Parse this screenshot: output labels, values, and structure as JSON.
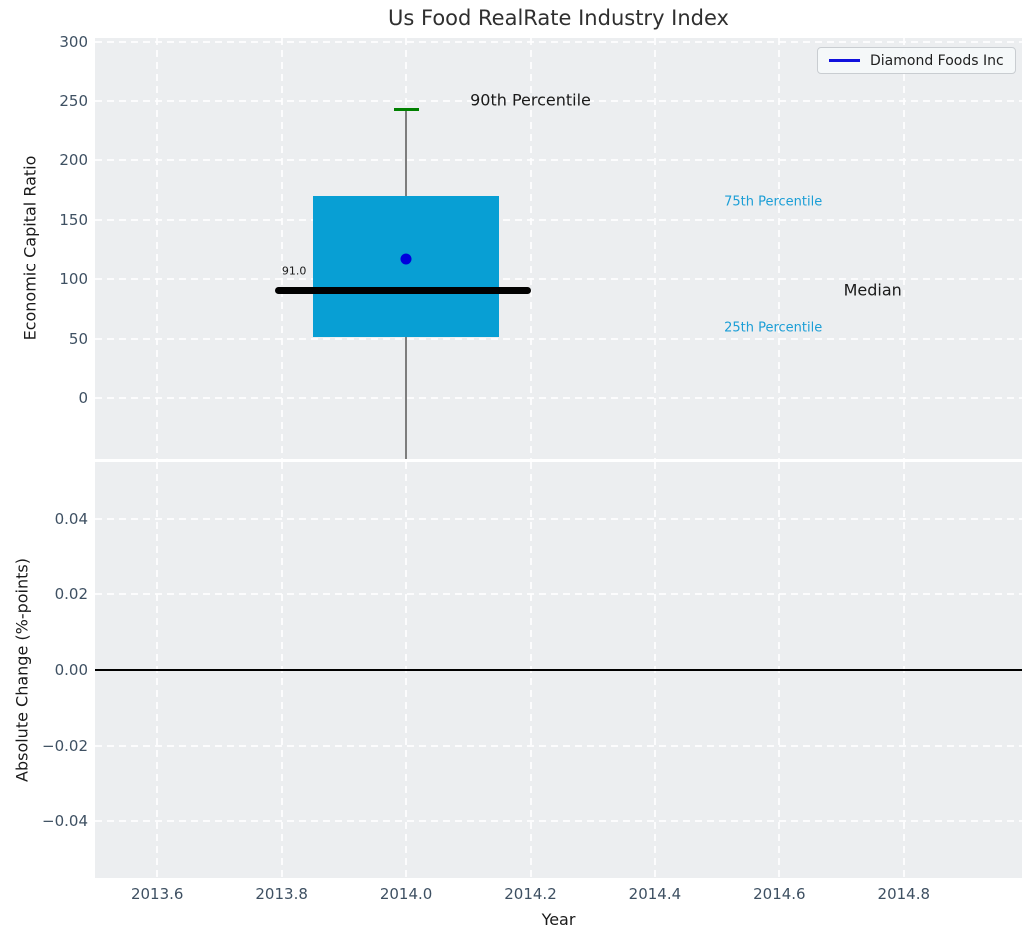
{
  "title": "Us Food RealRate Industry Index",
  "legend": {
    "label": "Diamond Foods Inc",
    "line_color": "#1111dd",
    "position": "upper right"
  },
  "colors": {
    "axes_bg": "#eceef0",
    "grid": "#ffffff",
    "tick_label": "#3e5062",
    "box_fill": "#089fd4",
    "median": "#000000",
    "whisker": "#7d7d7d",
    "cap_90th": "#008000",
    "point": "#0000dd",
    "annotation_accent": "#1b9ed6",
    "zero_line": "#000000"
  },
  "axes": {
    "top": {
      "ylabel": "Economic Capital Ratio"
    },
    "bottom": {
      "ylabel": "Absolute Change (%-points)"
    },
    "x": {
      "label": "Year"
    }
  },
  "chart_data": [
    {
      "type": "boxplot",
      "title": "Us Food RealRate Industry Index",
      "ylabel": "Economic Capital Ratio",
      "xlim": [
        2013.5,
        2014.99
      ],
      "ylim": [
        -51,
        303
      ],
      "yticks": [
        {
          "v": 0,
          "label": "0"
        },
        {
          "v": 50,
          "label": "50"
        },
        {
          "v": 100,
          "label": "100"
        },
        {
          "v": 150,
          "label": "150"
        },
        {
          "v": 200,
          "label": "200"
        },
        {
          "v": 250,
          "label": "250"
        },
        {
          "v": 300,
          "label": "300"
        }
      ],
      "grid": true,
      "box": {
        "x_center": 2014.0,
        "x_left": 2013.85,
        "x_right": 2014.15,
        "q1": 52,
        "q3": 170,
        "median": 91,
        "median_label": "91.0",
        "median_span": [
          2013.79,
          2014.2
        ],
        "p90": 243,
        "cap_span": [
          2013.98,
          2014.02
        ],
        "whisker_low_clipped": -51
      },
      "point": {
        "x": 2014.0,
        "y": 117,
        "series": "Diamond Foods Inc"
      },
      "annotations": [
        {
          "text": "90th Percentile",
          "x": 2014.2,
          "y": 251,
          "color": "#1a1a1a",
          "size": 16
        },
        {
          "text": "75th Percentile",
          "x": 2014.59,
          "y": 165,
          "color": "#1b9ed6",
          "size": 13
        },
        {
          "text": "Median",
          "x": 2014.75,
          "y": 91,
          "color": "#1a1a1a",
          "size": 16
        },
        {
          "text": "25th Percentile",
          "x": 2014.59,
          "y": 59,
          "color": "#1b9ed6",
          "size": 13
        },
        {
          "text": "91.0",
          "x": 2013.82,
          "y": 107,
          "color": "#1a1a1a",
          "size": 11
        }
      ],
      "legend_entries": [
        "Diamond Foods Inc"
      ]
    },
    {
      "type": "line",
      "ylabel": "Absolute Change (%-points)",
      "xlabel": "Year",
      "xlim": [
        2013.5,
        2014.99
      ],
      "ylim": [
        -0.055,
        0.055
      ],
      "yticks": [
        {
          "v": 0.04,
          "label": "0.04"
        },
        {
          "v": 0.02,
          "label": "0.02"
        },
        {
          "v": 0.0,
          "label": "0.00"
        },
        {
          "v": -0.02,
          "label": "−0.02"
        },
        {
          "v": -0.04,
          "label": "−0.04"
        }
      ],
      "xticks": [
        {
          "v": 2013.6,
          "label": "2013.6"
        },
        {
          "v": 2013.8,
          "label": "2013.8"
        },
        {
          "v": 2014.0,
          "label": "2014.0"
        },
        {
          "v": 2014.2,
          "label": "2014.2"
        },
        {
          "v": 2014.4,
          "label": "2014.4"
        },
        {
          "v": 2014.6,
          "label": "2014.6"
        },
        {
          "v": 2014.8,
          "label": "2014.8"
        }
      ],
      "grid": true,
      "zero_line": 0.0,
      "series": []
    }
  ]
}
